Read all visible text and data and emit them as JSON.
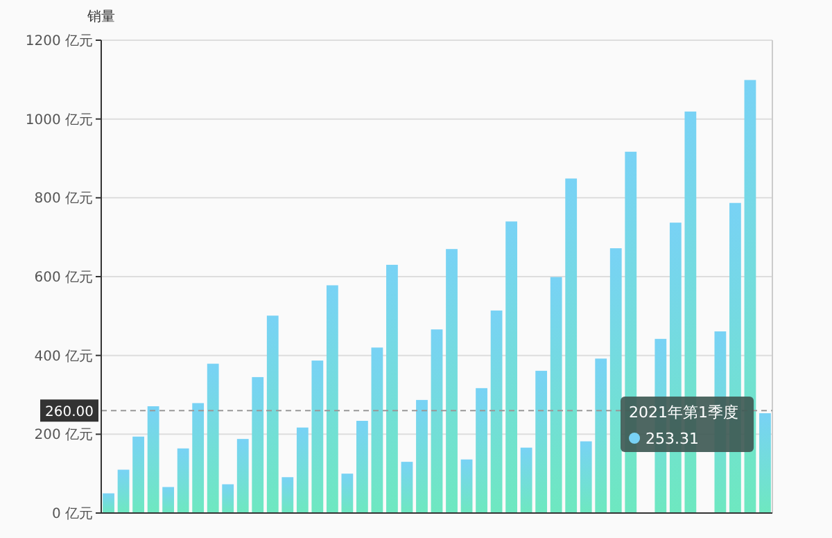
{
  "chart_data": {
    "type": "bar",
    "ylabel": "销量",
    "categories": [
      null,
      null,
      null,
      null,
      null,
      null,
      null,
      null,
      null,
      null,
      null,
      null,
      null,
      null,
      null,
      null,
      null,
      null,
      null,
      null,
      null,
      null,
      null,
      null,
      null,
      null,
      null,
      null,
      null,
      null,
      null,
      null,
      null,
      null,
      null,
      null,
      null,
      null,
      null,
      null,
      null,
      null,
      null,
      null,
      null
    ],
    "series": [
      {
        "color": "#78d2f5",
        "values": [
          50,
          110,
          194,
          271,
          66,
          164,
          279,
          379,
          73,
          188,
          345,
          501,
          91,
          217,
          387,
          578,
          100,
          234,
          420,
          630,
          130,
          287,
          466,
          670,
          136,
          317,
          514,
          740,
          166,
          361,
          599,
          849,
          182,
          392,
          672,
          917,
          null,
          442,
          737,
          1019,
          null,
          461,
          787,
          1099,
          253.31
        ]
      }
    ],
    "ylim": [
      0,
      1200
    ],
    "yticks": [
      {
        "value": 0,
        "label": "0 亿元"
      },
      {
        "value": 200,
        "label": "200 亿元"
      },
      {
        "value": 400,
        "label": "400 亿元"
      },
      {
        "value": 600,
        "label": "600 亿元"
      },
      {
        "value": 800,
        "label": "800 亿元"
      },
      {
        "value": 1000,
        "label": "1000 亿元"
      },
      {
        "value": 1200,
        "label": "1200 亿元"
      }
    ],
    "grid": "y",
    "ref_lines": [
      {
        "axis": "y",
        "value": 260,
        "label": "260.00",
        "line_style": "dashed",
        "color": "#999999"
      }
    ],
    "annotations": [
      "2021年第1季度",
      "253.31"
    ]
  }
}
